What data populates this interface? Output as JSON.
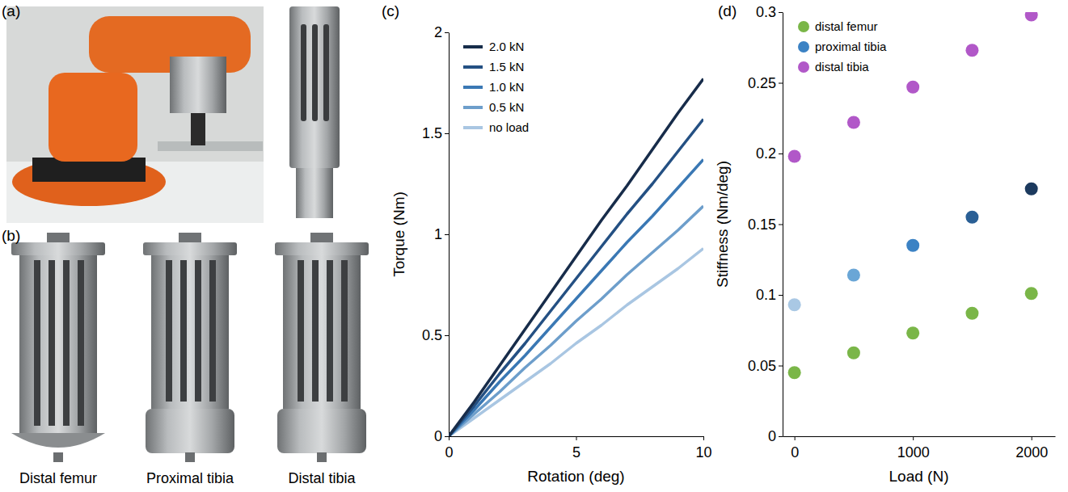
{
  "figure": {
    "panel_labels": [
      "(a)",
      "(b)",
      "(c)",
      "(d)"
    ],
    "captions": [
      "Distal femur",
      "Proximal tibia",
      "Distal tibia"
    ]
  },
  "chart_data": [
    {
      "type": "line",
      "x_label": "Rotation (deg)",
      "y_label": "Torque (Nm)",
      "x": [
        0,
        1,
        2,
        3,
        4,
        5,
        6,
        7,
        8,
        9,
        10
      ],
      "xlim": [
        0,
        10
      ],
      "xticks": [
        0,
        5,
        10
      ],
      "ylim": [
        0,
        2
      ],
      "yticks": [
        0,
        0.5,
        1,
        1.5,
        2
      ],
      "legend": "upper left",
      "series": [
        {
          "name": "2.0 kN",
          "color": "#172c4a",
          "values": [
            0,
            0.17,
            0.35,
            0.53,
            0.71,
            0.89,
            1.07,
            1.24,
            1.42,
            1.6,
            1.77
          ]
        },
        {
          "name": "1.5 kN",
          "color": "#245083",
          "values": [
            0,
            0.15,
            0.31,
            0.46,
            0.62,
            0.78,
            0.94,
            1.1,
            1.25,
            1.41,
            1.57
          ]
        },
        {
          "name": "1.0 kN",
          "color": "#3a78b4",
          "values": [
            0,
            0.13,
            0.27,
            0.4,
            0.54,
            0.68,
            0.82,
            0.96,
            1.09,
            1.23,
            1.37
          ]
        },
        {
          "name": "0.5 kN",
          "color": "#6d9ecb",
          "values": [
            0,
            0.11,
            0.22,
            0.34,
            0.45,
            0.57,
            0.68,
            0.8,
            0.91,
            1.02,
            1.14
          ]
        },
        {
          "name": "no load",
          "color": "#a9c6e2",
          "values": [
            0,
            0.09,
            0.18,
            0.27,
            0.36,
            0.46,
            0.55,
            0.65,
            0.74,
            0.83,
            0.93
          ]
        }
      ]
    },
    {
      "type": "scatter",
      "x_label": "Load (N)",
      "y_label": "Stiffness (Nm/deg)",
      "x": [
        0,
        500,
        1000,
        1500,
        2000
      ],
      "xlim": [
        -100,
        2200
      ],
      "xticks": [
        0,
        1000,
        2000
      ],
      "ylim": [
        0,
        0.3
      ],
      "yticks": [
        0,
        0.05,
        0.1,
        0.15,
        0.2,
        0.25,
        0.3
      ],
      "legend": "upper left",
      "series": [
        {
          "name": "distal femur",
          "color": "#7ab648",
          "values": [
            0.045,
            0.059,
            0.073,
            0.087,
            0.101
          ]
        },
        {
          "name": "proximal tibia",
          "color": "#3b82c4",
          "colors": [
            "#a9c8e4",
            "#6aa6d6",
            "#3b82c4",
            "#2a5f95",
            "#1c3a5e"
          ],
          "values": [
            0.093,
            0.114,
            0.135,
            0.155,
            0.175
          ]
        },
        {
          "name": "distal tibia",
          "color": "#b158c8",
          "values": [
            0.198,
            0.222,
            0.247,
            0.273,
            0.298
          ]
        }
      ]
    }
  ]
}
